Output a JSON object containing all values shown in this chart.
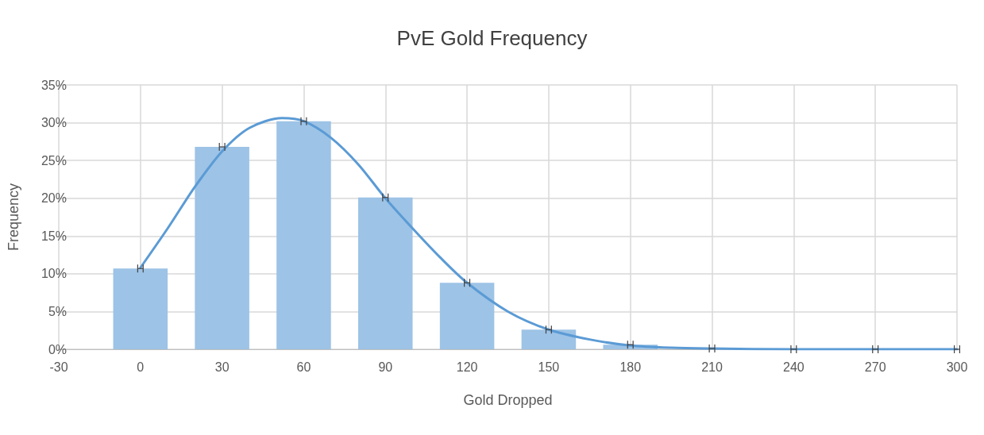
{
  "chart_data": {
    "type": "bar",
    "title": "PvE Gold Frequency",
    "xlabel": "Gold Dropped",
    "ylabel": "Frequency",
    "x": [
      0,
      30,
      60,
      90,
      120,
      150,
      180,
      210,
      240,
      270,
      300
    ],
    "series": [
      {
        "color": "#9dc3e6",
        "values": [
          10.7,
          26.8,
          30.2,
          20.1,
          8.8,
          2.6,
          0.6,
          0.1,
          0,
          0,
          0
        ],
        "xerrors": [
          1,
          1,
          1,
          1,
          1,
          1,
          1,
          1,
          1,
          1,
          1
        ]
      },
      {
        "type": "line",
        "color": "#5b9bd5",
        "x": [
          0,
          10,
          20,
          30,
          40,
          52,
          60,
          70,
          80,
          90,
          100,
          110,
          120,
          135,
          150,
          165,
          180,
          195,
          210,
          240,
          270,
          300
        ],
        "values": [
          10.8,
          16,
          21.5,
          26.2,
          29.3,
          30.6,
          30.2,
          28,
          24.5,
          20,
          16,
          12.2,
          8.8,
          5,
          2.6,
          1.3,
          0.5,
          0.2,
          0.1,
          0,
          0,
          0
        ],
        "marker": "none",
        "line_style": "solid"
      }
    ],
    "xlim": [
      -30,
      300
    ],
    "xticks": [
      -30,
      0,
      30,
      60,
      90,
      120,
      150,
      180,
      210,
      240,
      270,
      300
    ],
    "ylim": [
      0,
      35
    ],
    "yticks": [
      {
        "value": 0,
        "label": "0%"
      },
      {
        "value": 5,
        "label": "5%"
      },
      {
        "value": 10,
        "label": "10%"
      },
      {
        "value": 15,
        "label": "15%"
      },
      {
        "value": 20,
        "label": "20%"
      },
      {
        "value": 25,
        "label": "25%"
      },
      {
        "value": 30,
        "label": "30%"
      },
      {
        "value": 35,
        "label": "35%"
      }
    ],
    "grid": true
  }
}
